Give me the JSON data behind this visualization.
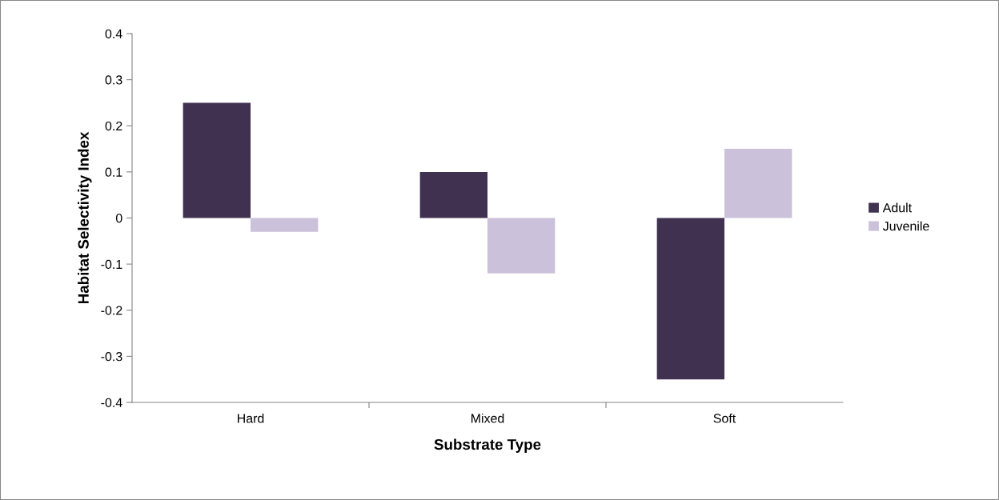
{
  "chart_data": {
    "type": "bar",
    "xlabel": "Substrate Type",
    "ylabel": "Habitat Selectivity Index",
    "categories": [
      "Hard",
      "Mixed",
      "Soft"
    ],
    "series": [
      {
        "name": "Adult",
        "color": "#403151",
        "values": [
          0.25,
          0.1,
          -0.35
        ]
      },
      {
        "name": "Juvenile",
        "color": "#ccc1da",
        "values": [
          -0.03,
          -0.12,
          0.15
        ]
      }
    ],
    "ylim": [
      -0.4,
      0.4
    ],
    "yticks": [
      {
        "value": -0.4,
        "label": "-0.4"
      },
      {
        "value": -0.3,
        "label": "-0.3"
      },
      {
        "value": -0.2,
        "label": "-0.2"
      },
      {
        "value": -0.1,
        "label": "-0.1"
      },
      0,
      0.1,
      0.2,
      0.3,
      0.4
    ],
    "grid": false,
    "legend": "right"
  }
}
